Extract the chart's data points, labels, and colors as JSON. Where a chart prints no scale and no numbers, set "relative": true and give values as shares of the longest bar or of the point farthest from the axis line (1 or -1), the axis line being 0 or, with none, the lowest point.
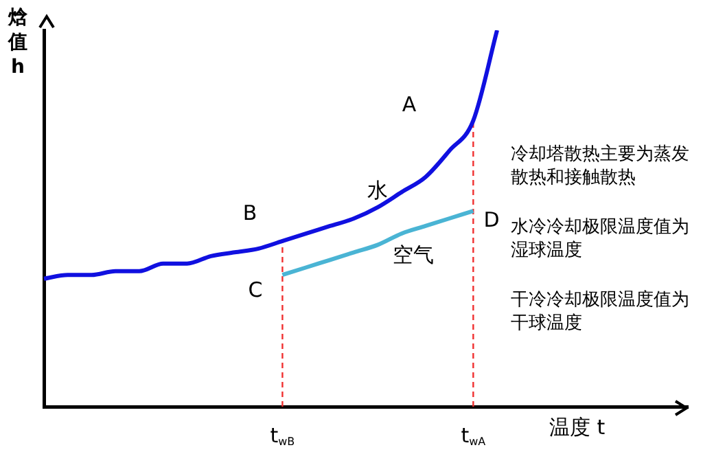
{
  "chart_data": {
    "type": "line",
    "relative": true,
    "xlabel": "温度 t",
    "ylabel": "焓值 h",
    "categories": [
      null,
      null,
      null,
      null,
      null,
      null,
      null,
      null,
      null,
      null,
      "t$_{wB}$",
      null,
      null,
      null,
      null,
      null,
      null,
      null,
      "t$_{wA}$",
      null,
      null,
      null,
      null,
      null,
      null,
      null,
      null,
      null
    ],
    "series": [
      {
        "name": "水",
        "color": "#1010e0",
        "values": [
          0.34,
          0.35,
          0.35,
          0.36,
          0.36,
          0.38,
          0.38,
          0.4,
          0.41,
          0.42,
          0.44,
          0.46,
          0.48,
          0.5,
          0.53,
          0.57,
          0.61,
          0.68,
          0.76,
          1,
          null,
          null,
          null,
          null,
          null,
          null,
          null,
          null
        ]
      },
      {
        "name": "空气",
        "color": "#4ab4d4",
        "values": [
          null,
          null,
          null,
          null,
          null,
          null,
          null,
          null,
          null,
          null,
          0.35,
          0.37,
          0.39,
          0.41,
          0.43,
          0.46,
          0.48,
          0.5,
          0.52,
          null,
          null,
          null,
          null,
          null,
          null,
          null,
          null,
          null
        ]
      }
    ],
    "ref_lines": [
      {
        "axis": "x",
        "value": "t$_{wB}$",
        "color": "#f03030",
        "line_style": "dashed"
      },
      {
        "axis": "x",
        "value": "t$_{wA}$",
        "color": "#f03030",
        "line_style": "dashed"
      }
    ],
    "annotations": [
      "A",
      "B",
      "C",
      "D",
      "冷却塔散热主要为蒸发散热和接触散热",
      "水冷冷却极限温度值为湿球温度",
      "干冷冷却极限温度值为干球温度"
    ],
    "legend": false,
    "grid": false,
    "marker": "none"
  }
}
